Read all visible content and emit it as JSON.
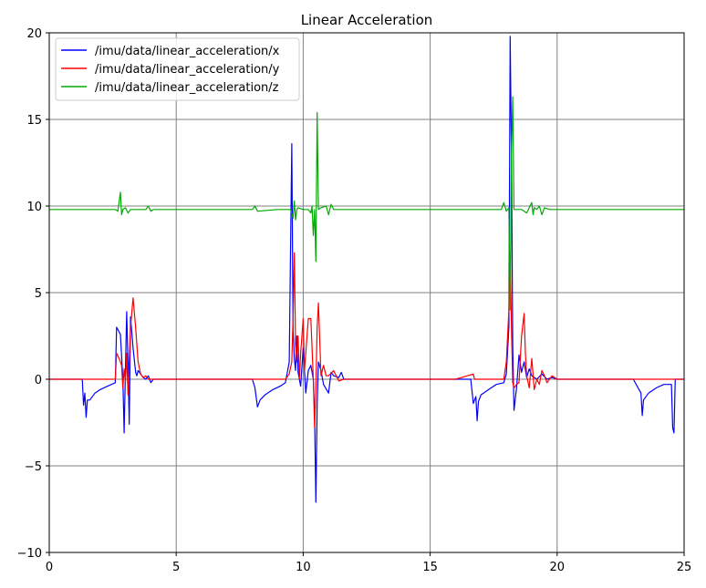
{
  "chart_data": {
    "type": "line",
    "title": "Linear Acceleration",
    "xlabel": "",
    "ylabel": "",
    "xlim": [
      0,
      25
    ],
    "ylim": [
      -10,
      20
    ],
    "xticks": [
      0,
      5,
      10,
      15,
      20,
      25
    ],
    "yticks": [
      -10,
      -5,
      0,
      5,
      10,
      15,
      20
    ],
    "xtick_labels": [
      "0",
      "5",
      "10",
      "15",
      "20",
      "25"
    ],
    "ytick_labels": [
      "−10",
      "−5",
      "0",
      "5",
      "10",
      "15",
      "20"
    ],
    "grid": true,
    "legend_position": "top-left",
    "series": [
      {
        "name": "/imu/data/linear_acceleration/x",
        "color": "#0000ff",
        "x": [
          0,
          0.3,
          0.6,
          1.0,
          1.3,
          1.35,
          1.4,
          1.45,
          1.5,
          1.6,
          1.8,
          2.0,
          2.3,
          2.6,
          2.65,
          2.8,
          2.9,
          2.95,
          3.0,
          3.05,
          3.1,
          3.15,
          3.2,
          3.3,
          3.4,
          3.45,
          3.5,
          3.6,
          3.7,
          3.8,
          3.9,
          4.0,
          4.1,
          4.5,
          5.0,
          6.0,
          7.0,
          8.0,
          8.1,
          8.2,
          8.3,
          8.5,
          8.8,
          9.1,
          9.3,
          9.45,
          9.55,
          9.6,
          9.65,
          9.7,
          9.75,
          9.8,
          9.9,
          10.0,
          10.1,
          10.2,
          10.3,
          10.4,
          10.45,
          10.5,
          10.55,
          10.6,
          10.7,
          10.8,
          11.0,
          11.1,
          11.2,
          11.4,
          11.5,
          11.6,
          12.0,
          13.0,
          14.0,
          15.0,
          16.0,
          16.6,
          16.7,
          16.8,
          16.85,
          16.9,
          17.0,
          17.3,
          17.6,
          17.9,
          18.0,
          18.1,
          18.15,
          18.2,
          18.25,
          18.3,
          18.4,
          18.5,
          18.6,
          18.7,
          18.8,
          18.9,
          19.0,
          19.2,
          19.4,
          19.6,
          19.8,
          20.0,
          21.0,
          22.0,
          23.0,
          23.3,
          23.35,
          23.4,
          23.6,
          23.9,
          24.2,
          24.5,
          24.55,
          24.6,
          24.65,
          24.7,
          25.0
        ],
        "y": [
          0,
          0,
          0,
          0,
          0,
          -1.5,
          -0.8,
          -2.2,
          -1.2,
          -1.2,
          -0.8,
          -0.6,
          -0.4,
          -0.2,
          3.0,
          2.6,
          0.0,
          -3.1,
          0.5,
          3.9,
          1.0,
          -2.6,
          3.6,
          1.8,
          0.4,
          0.2,
          0.5,
          0.3,
          0.1,
          0.0,
          0.2,
          -0.2,
          0.0,
          0.0,
          0.0,
          0.0,
          0.0,
          0.0,
          -0.5,
          -1.6,
          -1.2,
          -0.9,
          -0.6,
          -0.4,
          -0.2,
          1.0,
          13.6,
          2.8,
          1.2,
          0.5,
          2.5,
          0.4,
          -0.4,
          1.8,
          -0.8,
          0.5,
          0.8,
          0.0,
          -2.0,
          -7.1,
          -1.5,
          1.0,
          0.5,
          -0.3,
          -0.8,
          0.4,
          0.2,
          0.1,
          0.4,
          0.0,
          0.0,
          0.0,
          0.0,
          0.0,
          0.0,
          0.0,
          -1.4,
          -1.0,
          -2.4,
          -1.3,
          -0.9,
          -0.6,
          -0.3,
          -0.2,
          0.3,
          3.0,
          19.8,
          13.0,
          2.0,
          -1.8,
          -0.5,
          1.4,
          0.4,
          1.0,
          0.1,
          0.6,
          0.2,
          0.0,
          0.3,
          0.0,
          0.1,
          0.0,
          0.0,
          0.0,
          0.0,
          -0.8,
          -2.1,
          -1.2,
          -0.8,
          -0.5,
          -0.3,
          -0.3,
          -2.8,
          -3.1,
          0.0,
          0.0,
          0.0
        ]
      },
      {
        "name": "/imu/data/linear_acceleration/y",
        "color": "#ff0000",
        "x": [
          0,
          1.0,
          2.0,
          2.6,
          2.65,
          2.75,
          2.85,
          2.9,
          2.95,
          3.0,
          3.05,
          3.1,
          3.2,
          3.3,
          3.4,
          3.5,
          3.6,
          3.7,
          3.8,
          3.9,
          4.0,
          4.2,
          5.0,
          7.0,
          8.0,
          9.0,
          9.3,
          9.45,
          9.55,
          9.6,
          9.65,
          9.7,
          9.75,
          9.8,
          9.85,
          9.9,
          10.0,
          10.05,
          10.1,
          10.2,
          10.3,
          10.4,
          10.45,
          10.5,
          10.55,
          10.6,
          10.7,
          10.8,
          10.9,
          11.0,
          11.2,
          11.4,
          11.6,
          12.0,
          14.0,
          16.0,
          16.7,
          16.75,
          16.8,
          17.0,
          17.5,
          17.9,
          18.0,
          18.1,
          18.15,
          18.2,
          18.25,
          18.3,
          18.4,
          18.5,
          18.6,
          18.7,
          18.75,
          18.8,
          18.9,
          19.0,
          19.1,
          19.2,
          19.3,
          19.4,
          19.5,
          19.6,
          19.7,
          19.8,
          20.0,
          20.3,
          21.0,
          22.0,
          23.0,
          24.0,
          25.0
        ],
        "y": [
          0,
          0,
          0,
          0,
          1.5,
          1.2,
          0.8,
          -0.5,
          0.6,
          -0.2,
          1.5,
          -0.9,
          3.0,
          4.7,
          3.0,
          1.0,
          0.3,
          0.1,
          0.2,
          0.0,
          0.0,
          0.0,
          0.0,
          0.0,
          0.0,
          0.0,
          0.0,
          0.3,
          1.0,
          3.5,
          7.3,
          2.0,
          1.0,
          2.5,
          0.0,
          1.5,
          3.5,
          0.5,
          1.5,
          3.5,
          3.5,
          0.0,
          -2.8,
          -0.5,
          3.0,
          4.4,
          0.2,
          0.8,
          0.2,
          0.2,
          0.5,
          -0.1,
          0.0,
          0.0,
          0.0,
          0.0,
          0.3,
          0.0,
          0.0,
          0.0,
          0.0,
          0.0,
          1.0,
          4.0,
          7.2,
          3.0,
          -0.2,
          -0.5,
          -0.3,
          -0.2,
          2.5,
          3.8,
          1.5,
          0.2,
          -0.5,
          1.2,
          -0.6,
          0.0,
          -0.3,
          0.5,
          0.2,
          -0.2,
          0.0,
          0.2,
          0.0,
          0.0,
          0.0,
          0.0,
          0.0,
          0.0,
          0.0
        ]
      },
      {
        "name": "/imu/data/linear_acceleration/z",
        "color": "#00aa00",
        "x": [
          0,
          1.0,
          2.0,
          2.6,
          2.7,
          2.8,
          2.85,
          2.9,
          3.0,
          3.1,
          3.2,
          3.5,
          3.8,
          3.9,
          4.0,
          4.1,
          5.0,
          7.0,
          8.0,
          8.1,
          8.2,
          9.0,
          9.5,
          9.6,
          9.65,
          9.7,
          9.75,
          9.8,
          10.0,
          10.2,
          10.3,
          10.35,
          10.4,
          10.45,
          10.5,
          10.55,
          10.6,
          10.7,
          10.9,
          11.0,
          11.1,
          11.2,
          11.5,
          12.0,
          14.0,
          16.0,
          17.0,
          17.8,
          17.9,
          18.0,
          18.1,
          18.15,
          18.2,
          18.25,
          18.3,
          18.4,
          18.6,
          18.8,
          19.0,
          19.05,
          19.1,
          19.2,
          19.3,
          19.4,
          19.5,
          19.7,
          20.0,
          21.0,
          22.0,
          23.0,
          24.0,
          25.0
        ],
        "y": [
          9.8,
          9.8,
          9.8,
          9.8,
          9.7,
          10.8,
          9.5,
          9.8,
          9.9,
          9.6,
          9.8,
          9.8,
          9.8,
          10.0,
          9.7,
          9.8,
          9.8,
          9.8,
          9.8,
          10.0,
          9.7,
          9.8,
          9.8,
          9.3,
          10.3,
          9.2,
          9.8,
          9.9,
          9.8,
          9.8,
          9.6,
          10.0,
          8.3,
          9.8,
          6.8,
          15.4,
          9.8,
          9.9,
          10.0,
          9.5,
          10.1,
          9.8,
          9.8,
          9.8,
          9.8,
          9.8,
          9.8,
          9.8,
          10.2,
          9.7,
          9.9,
          4.0,
          13.0,
          16.3,
          9.8,
          9.8,
          9.8,
          9.6,
          10.2,
          9.5,
          9.9,
          9.8,
          10.0,
          9.5,
          9.9,
          9.8,
          9.8,
          9.8,
          9.8,
          9.8,
          9.8,
          9.8
        ]
      }
    ]
  }
}
